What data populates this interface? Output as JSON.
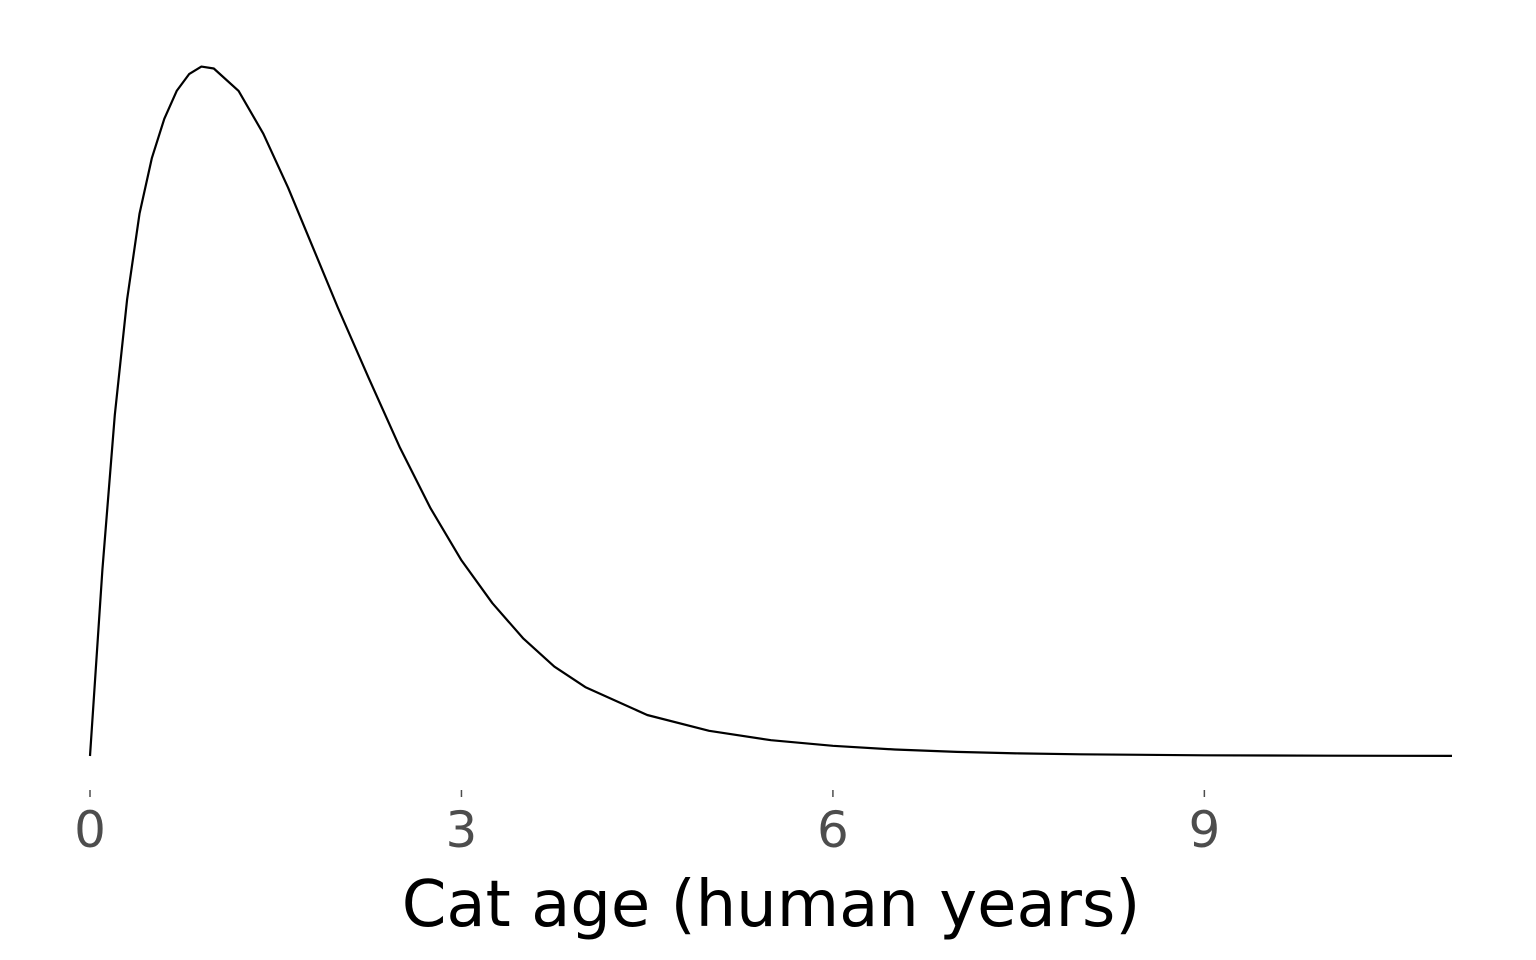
{
  "chart_data": {
    "type": "line",
    "title": "",
    "xlabel": "Cat age (human years)",
    "ylabel": "",
    "xlim": [
      0,
      11
    ],
    "ylim": [
      0,
      0.38
    ],
    "x_ticks": [
      0,
      3,
      6,
      9
    ],
    "x_tick_labels": [
      "0",
      "3",
      "6",
      "9"
    ],
    "grid": false,
    "legend": "none",
    "line_color": "#000000",
    "series": [
      {
        "x": [
          0,
          0.1,
          0.2,
          0.3,
          0.4,
          0.5,
          0.6,
          0.7,
          0.8,
          0.9,
          1.0,
          1.2,
          1.4,
          1.6,
          1.8,
          2.0,
          2.25,
          2.5,
          2.75,
          3.0,
          3.25,
          3.5,
          3.75,
          4.0,
          4.5,
          5.0,
          5.5,
          6.0,
          6.5,
          7.0,
          7.5,
          8.0,
          9.0,
          10.0,
          11.0
        ],
        "y": [
          0.0,
          0.1,
          0.183,
          0.245,
          0.291,
          0.321,
          0.342,
          0.357,
          0.366,
          0.37,
          0.369,
          0.357,
          0.334,
          0.305,
          0.273,
          0.241,
          0.203,
          0.166,
          0.133,
          0.105,
          0.082,
          0.063,
          0.048,
          0.037,
          0.022,
          0.0135,
          0.0085,
          0.0055,
          0.0035,
          0.0022,
          0.0014,
          0.0009,
          0.0004,
          0.00015,
          5e-05
        ]
      }
    ]
  }
}
